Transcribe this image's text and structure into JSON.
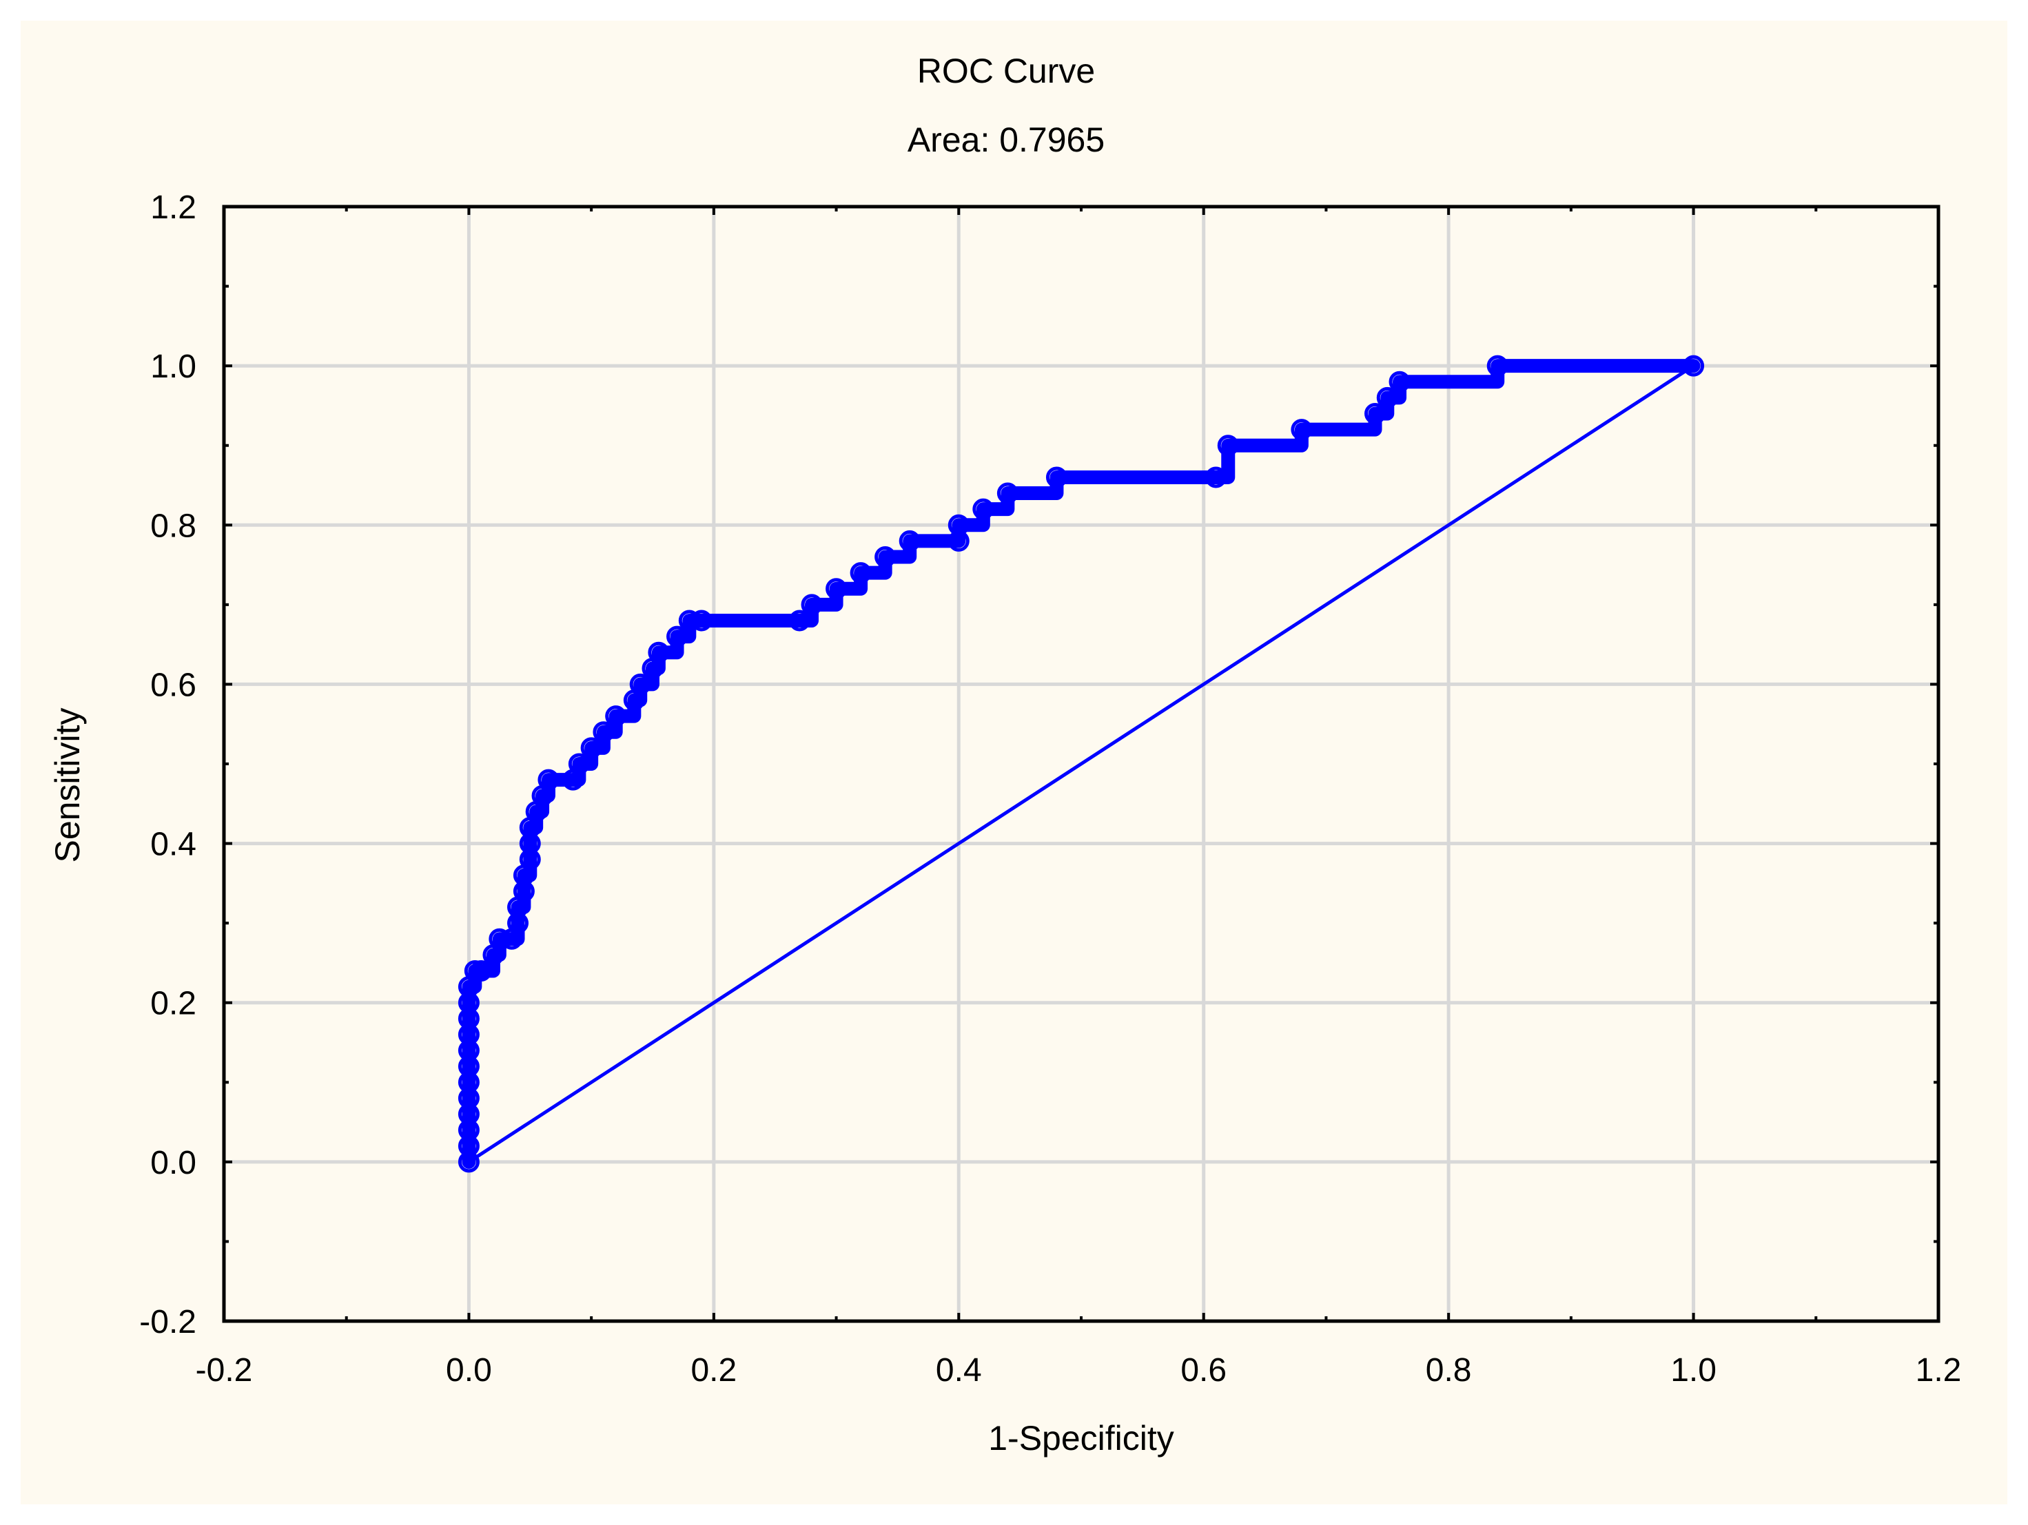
{
  "chart_data": {
    "type": "line",
    "title": "ROC Curve",
    "subtitle": "Area: 0.7965",
    "xlabel": "1-Specificity",
    "ylabel": "Sensitivity",
    "xlim": [
      -0.2,
      1.2
    ],
    "ylim": [
      -0.2,
      1.2
    ],
    "xticks": [
      "-0.2",
      "0.0",
      "0.2",
      "0.4",
      "0.6",
      "0.8",
      "1.0",
      "1.2"
    ],
    "yticks": [
      "-0.2",
      "0.0",
      "0.2",
      "0.4",
      "0.6",
      "0.8",
      "1.0",
      "1.2"
    ],
    "grid": true,
    "colors": {
      "series": "#0000ff",
      "grid": "#d8d8d8",
      "background": "#fefaf0"
    },
    "series": [
      {
        "type": "line-markers",
        "x": [
          0.0,
          0.0,
          0.0,
          0.0,
          0.0,
          0.0,
          0.0,
          0.0,
          0.0,
          0.0,
          0.0,
          0.0,
          0.005,
          0.01,
          0.02,
          0.025,
          0.035,
          0.04,
          0.04,
          0.045,
          0.045,
          0.05,
          0.05,
          0.05,
          0.055,
          0.06,
          0.065,
          0.085,
          0.09,
          0.1,
          0.11,
          0.12,
          0.135,
          0.14,
          0.15,
          0.155,
          0.17,
          0.18,
          0.19,
          0.27,
          0.28,
          0.3,
          0.32,
          0.34,
          0.36,
          0.4,
          0.4,
          0.42,
          0.44,
          0.48,
          0.61,
          0.62,
          0.68,
          0.74,
          0.75,
          0.76,
          0.84,
          1.0
        ],
        "y": [
          0.0,
          0.02,
          0.04,
          0.06,
          0.08,
          0.1,
          0.12,
          0.14,
          0.16,
          0.18,
          0.2,
          0.22,
          0.24,
          0.24,
          0.26,
          0.28,
          0.28,
          0.3,
          0.32,
          0.34,
          0.36,
          0.38,
          0.4,
          0.42,
          0.44,
          0.46,
          0.48,
          0.48,
          0.5,
          0.52,
          0.54,
          0.56,
          0.58,
          0.6,
          0.62,
          0.64,
          0.66,
          0.68,
          0.68,
          0.68,
          0.7,
          0.72,
          0.74,
          0.76,
          0.78,
          0.78,
          0.8,
          0.82,
          0.84,
          0.86,
          0.86,
          0.9,
          0.92,
          0.94,
          0.96,
          0.98,
          1.0,
          1.0
        ]
      },
      {
        "type": "reference-line",
        "x": [
          0.0,
          1.0
        ],
        "y": [
          0.0,
          1.0
        ]
      }
    ]
  }
}
